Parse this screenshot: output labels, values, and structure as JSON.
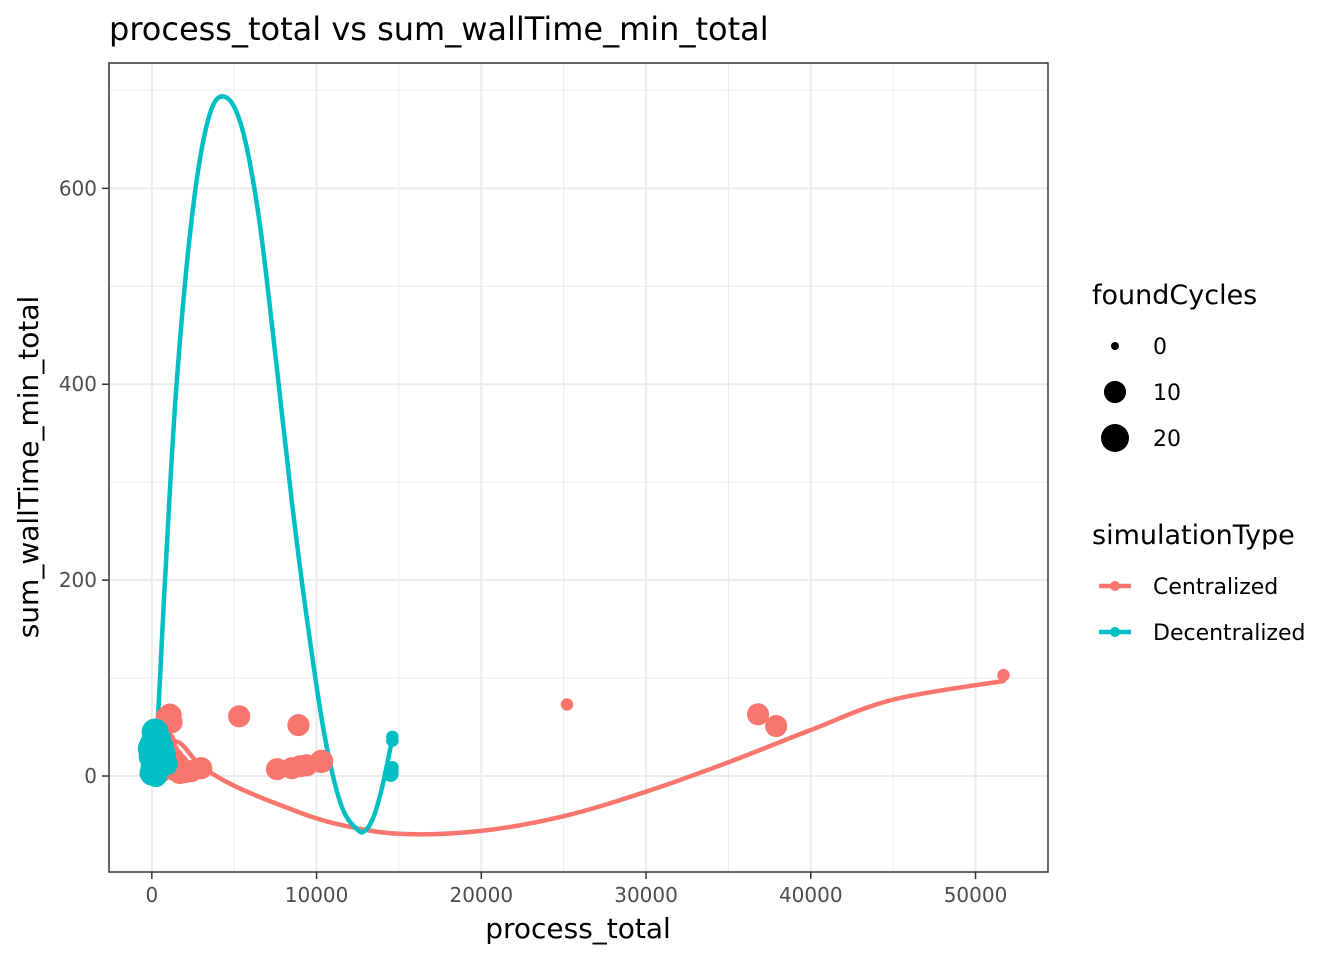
{
  "chart_data": {
    "type": "scatter",
    "title": "process_total  vs  sum_wallTime_min_total",
    "xlabel": "process_total",
    "ylabel": "sum_wallTime_min_total",
    "xlim": [
      -2600,
      54400
    ],
    "ylim": [
      -98,
      728
    ],
    "x_ticks": [
      0,
      10000,
      20000,
      30000,
      40000,
      50000
    ],
    "x_tick_labels": [
      "0",
      "10000",
      "20000",
      "30000",
      "40000",
      "50000"
    ],
    "y_ticks": [
      0,
      200,
      400,
      600
    ],
    "y_tick_labels": [
      "0",
      "200",
      "400",
      "600"
    ],
    "grid": true,
    "theme": "bw",
    "size_legend": {
      "title": "foundCycles",
      "entries": [
        {
          "label": "0",
          "value": 0
        },
        {
          "label": "10",
          "value": 10
        },
        {
          "label": "20",
          "value": 20
        }
      ]
    },
    "color_legend": {
      "title": "simulationType",
      "position": "right"
    },
    "series": [
      {
        "name": "Centralized",
        "color": "#F8766D",
        "points": [
          {
            "x": 51700,
            "y": 103,
            "foundCycles": 1
          },
          {
            "x": 25200,
            "y": 73,
            "foundCycles": 1
          },
          {
            "x": 36800,
            "y": 63,
            "foundCycles": 10
          },
          {
            "x": 37900,
            "y": 51,
            "foundCycles": 10
          },
          {
            "x": 5300,
            "y": 61,
            "foundCycles": 10
          },
          {
            "x": 8900,
            "y": 52,
            "foundCycles": 10
          },
          {
            "x": 10300,
            "y": 15,
            "foundCycles": 12
          },
          {
            "x": 9400,
            "y": 11,
            "foundCycles": 10
          },
          {
            "x": 9000,
            "y": 10,
            "foundCycles": 10
          },
          {
            "x": 8500,
            "y": 8,
            "foundCycles": 10
          },
          {
            "x": 7600,
            "y": 7,
            "foundCycles": 10
          },
          {
            "x": 3000,
            "y": 8,
            "foundCycles": 10
          },
          {
            "x": 2400,
            "y": 5,
            "foundCycles": 10
          },
          {
            "x": 2000,
            "y": 4,
            "foundCycles": 10
          },
          {
            "x": 1700,
            "y": 3,
            "foundCycles": 10
          },
          {
            "x": 1400,
            "y": 6,
            "foundCycles": 10
          },
          {
            "x": 1100,
            "y": 62,
            "foundCycles": 12
          },
          {
            "x": 1200,
            "y": 55,
            "foundCycles": 10
          },
          {
            "x": 900,
            "y": 60,
            "foundCycles": 10
          },
          {
            "x": 800,
            "y": 35,
            "foundCycles": 10
          },
          {
            "x": 1000,
            "y": 25,
            "foundCycles": 10
          },
          {
            "x": 1300,
            "y": 18,
            "foundCycles": 10
          },
          {
            "x": 1600,
            "y": 12,
            "foundCycles": 10
          },
          {
            "x": 700,
            "y": 8,
            "foundCycles": 10
          },
          {
            "x": 500,
            "y": 4,
            "foundCycles": 10
          },
          {
            "x": 300,
            "y": 2,
            "foundCycles": 10
          }
        ],
        "smooth_line": {
          "x": [
            0,
            1400,
            3000,
            5000,
            8000,
            11000,
            15000,
            20000,
            25000,
            30000,
            35000,
            40000,
            45000,
            51700
          ],
          "y": [
            0,
            35,
            10,
            -10,
            -31,
            -48,
            -59,
            -56,
            -41,
            -16,
            14,
            47,
            78,
            97
          ]
        }
      },
      {
        "name": "Decentralized",
        "color": "#00BFC4",
        "points": [
          {
            "x": 14600,
            "y": 40,
            "foundCycles": 1
          },
          {
            "x": 14600,
            "y": 36,
            "foundCycles": 1
          },
          {
            "x": 14600,
            "y": 9,
            "foundCycles": 1
          },
          {
            "x": 14600,
            "y": 6,
            "foundCycles": 1
          },
          {
            "x": 14500,
            "y": 2,
            "foundCycles": 3
          },
          {
            "x": 200,
            "y": 45,
            "foundCycles": 18
          },
          {
            "x": 100,
            "y": 32,
            "foundCycles": 20
          },
          {
            "x": 0,
            "y": 28,
            "foundCycles": 20
          },
          {
            "x": 50,
            "y": 20,
            "foundCycles": 20
          },
          {
            "x": 150,
            "y": 15,
            "foundCycles": 18
          },
          {
            "x": 80,
            "y": 8,
            "foundCycles": 15
          },
          {
            "x": 20,
            "y": 3,
            "foundCycles": 15
          },
          {
            "x": 300,
            "y": 25,
            "foundCycles": 15
          },
          {
            "x": 450,
            "y": 38,
            "foundCycles": 12
          },
          {
            "x": 600,
            "y": 30,
            "foundCycles": 12
          },
          {
            "x": 800,
            "y": 22,
            "foundCycles": 10
          },
          {
            "x": 900,
            "y": 12,
            "foundCycles": 10
          },
          {
            "x": 350,
            "y": 5,
            "foundCycles": 10
          },
          {
            "x": 250,
            "y": 0,
            "foundCycles": 10
          }
        ],
        "smooth_line": {
          "x": [
            0,
            300,
            800,
            1500,
            2500,
            3500,
            4500,
            5500,
            6500,
            7500,
            8500,
            9500,
            10500,
            11500,
            12500,
            13000,
            13500,
            14000,
            14500
          ],
          "y": [
            15,
            40,
            200,
            400,
            580,
            675,
            693,
            660,
            570,
            430,
            280,
            150,
            40,
            -30,
            -55,
            -55,
            -40,
            -10,
            30
          ]
        }
      }
    ]
  }
}
